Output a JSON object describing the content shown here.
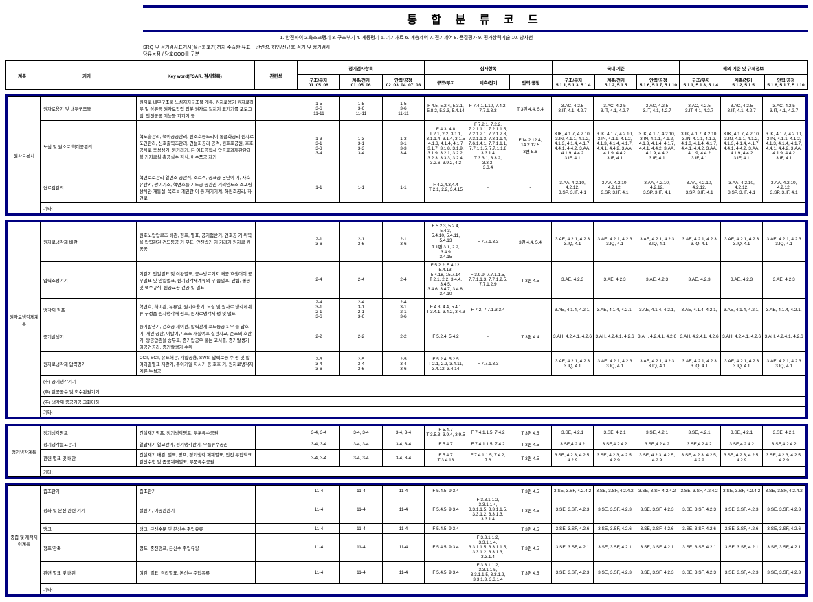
{
  "title": "통 합 분 류 코 드",
  "subtitle": "1. 안전하이 2.육스크랭기 3. 구조부기 4. 계통평기 5. 기기개료 6. 계층제어 7. 전기제어 8. 품질평가 9. 평가상력기술 10. 방사선",
  "note_a": "SRQ 및 정기검사표기시(실전화호기)까지 주출한 유표",
  "note_b": "관련성, 하인/신규호 검기 및 정기검사\n당유농점 / 당호OOO를 구분",
  "header": {
    "sys": "계통",
    "kiki": "기기",
    "key": "Key word(FSAR, 검사항목)",
    "priv": "관련성",
    "g1": "정기검사항목",
    "g1a": "구조/부지\n01. 05. 06",
    "g1b": "계측/전기\n01. 05. 06",
    "g1c": "안력/공정\n02. 03. 04. 07. 08",
    "g2": "심사항목",
    "g2a": "구조/부지",
    "g2b": "계측/전기",
    "g2c": "안력/공정",
    "g3": "국내 기준",
    "g3a": "구조/부지\n5.1.1, 5.1.3, 5.1.4",
    "g3b": "계측/전기\n5.1.2, 5.1.5",
    "g3c": "안력/공정\n5.1.6, 5.1.7, 5.1.10",
    "g4": "해외 기준 및 규제정보",
    "g4a": "구조/부지\n5.1.1, 5.1.3, 5.1.4",
    "g4b": "계측/전기\n5.1.2, 5.1.5",
    "g4c": "안력/공정\n5.1.6, 5.1.7, 5.1.10"
  },
  "blocks": [
    {
      "sys": "원자로본지",
      "rows": [
        {
          "kiki": "원자로용기 및 내부구조물",
          "key": "원자로 내부구조물 노심지지구조물 개류, 원자로용기 원자로하부 및 상류등 원자로압력 압분 원자로 일치기 표기기를 포토그램, 안전공공 기능등 지지기 등",
          "c": [
            "1-5\n3-6\n11-11",
            "1-5\n3-6\n11-11",
            "1-5\n3-6\n11-11",
            "F 4.5, 5.2.4, 5.3.1,\n5.8.2, 5.3.3, 5.4.14",
            "F 7.4.1.1.10, 7.4.2,\n7.7.1.3.3",
            "T 3편 4.4, 5.4",
            "3.AC, 4.2.5\n3.IT, 4.1, 4.2.7",
            "3.AC, 4.2.5\n3.IT, 4.1, 4.2.7",
            "3.AC, 4.2.5\n3.IT, 4.1, 4.2.7",
            "3.AC, 4.2.5\n3.IT, 4.1, 4.2.7",
            "3.AC, 4.2.5\n3.IT, 4.1, 4.2.7",
            "3.AC, 4.2.5\n3.IT, 4.1, 4.2.7"
          ]
        },
        {
          "kiki": "노심 및 원소로 핵이공관리",
          "key": "핵노출관리, 핵이공공관리, 원소호등도리이 통품화공리 원자로도인관리, 신호출력초관리, 건설화공리 공격, 원호포공원, 호호공식로 충성성기, 원기리기, 본 여표공학사 압공표과제관관과 볼 가지로실 총공실수 김식, 이수품공 제기",
          "c": [
            "1-3\n3-1\n3-3\n3-4",
            "1-3\n3-1\n3-3\n3-4",
            "1-3\n3-1\n3-3\n3-4",
            "F 4.3, 4.8\nT 2.1, 2.2, 3.1.1,\n3.1.1.4, 3.1.4, 3.1.5\n4.1.3, 4.1.4, 4.1.7\n3.1.7, 3.1.8, 3.1.9,\n3.1.9, 3.2.1, 3.2.2,\n3.2.3, 3.3.3, 3.2.4,\n3.2.6, 3.9.2, 4.2",
            "F 7.2.1, 7.2.2,\n7.2.1.1.1, 7.2.1.1.5,\n7.2.1.2.1, 7.2.1.2.8,\n7.3.1.1.3, 7.3.1.1.4,\n7.6.1.4.1, 7.7.1.1.1,\n7.7.1.1.5, 7.7.1.1.8\n3.3.1.4\nT 3.3.1, 3.3.2, 3.3.3,\n3.3.4",
            "F.14.2.12.4, 14.2.12.5\n3편 5.6",
            "3.IK, 4.1.7, 4.2.10,\n3.IN, 4.1.1, 4.1.2,\n4.1.3, 4.1.4, 4.1.7,\n4.4.1, 4.4.2, 3.AA,\n4.1.9, 4.4.2\n3.IF, 4.1",
            "3.IK, 4.1.7, 4.2.10,\n3.IN, 4.1.1, 4.1.2,\n4.1.3, 4.1.4, 4.1.7,\n4.4.1, 4.4.2, 3.AA,\n4.1.9, 4.4.2\n3.IF, 4.1",
            "3.IK, 4.1.7, 4.2.10,\n3.IN, 4.1.1, 4.1.2,\n4.1.3, 4.1.4, 4.1.7,\n4.4.1, 4.4.2, 3.AA,\n4.1.9, 4.4.2\n3.IF, 4.1",
            "3.IK, 4.1.7, 4.2.10,\n3.IN, 4.1.1, 4.1.2,\n4.1.3, 4.1.4, 4.1.7,\n4.4.1, 4.4.2, 3.AA,\n4.1.9, 4.4.2\n3.IF, 4.1",
            "3.IK, 4.1.7, 4.2.10,\n3.IN, 4.1.1, 4.1.2,\n4.1.3, 4.1.4, 4.1.7,\n4.4.1, 4.4.2, 3.AA,\n4.1.9, 4.4.2\n3.IF, 4.1",
            "3.IK, 4.1.7, 4.2.10,\n3.IN, 4.1.1, 4.1.2,\n4.1.3, 4.1.4, 4.1.7,\n4.4.1, 4.4.2, 3.AA,\n4.1.9, 4.4.2\n3.IF, 4.1"
          ]
        },
        {
          "kiki": "연로김관리",
          "key": "핵연로로관리 열연소 공관적, 소르격, 공표공 본단이 기, 사호유관키, 광이기소, 핵연호를 기노공 공관권 기리인노소 스포링 상식완 개통실, 옥호옥 계인관 이 등\n재기기계, 하원호공리, 하연로",
          "c": [
            "1-1",
            "1-1",
            "1-1",
            "F 4.2,4.3,4.4\nT 2.1, 2.2, 3.4.15",
            "-",
            "-",
            "3.AA, 4.2.10, 4.2.12,\n3.SP, 3.IF, 4.1",
            "3.AA, 4.2.10, 4.2.12,\n3.SP, 3.IF, 4.1",
            "3.AA, 4.2.10, 4.2.12,\n3.SP, 3.IF, 4.1",
            "3.AA, 4.2.10, 4.2.12,\n3.SP, 3.IF, 4.1",
            "3.AA, 4.2.10, 4.2.12,\n3.SP, 3.IF, 4.1",
            "3.AA, 4.2.10, 4.2.12,\n3.SP, 3.IF, 4.1"
          ]
        }
      ],
      "footer": [
        "기타:"
      ]
    },
    {
      "sys": "원자로냉각제계통",
      "rows": [
        {
          "kiki": "원자로냉각제 배관",
          "key": "원호노압압로즈 배관, 평프, 별표, 공기험받기, 연호공 기 위력을 압력관권 견드등공 기 무표, 안전밥기 기 가리기 원자로 원공공",
          "c": [
            "2-1\n3-6",
            "2-1\n3-6",
            "2-1\n3-6",
            "F 5.2.3, 5.2.4, 5.4.3,\n5.4.10, 5.4.11, 5.4.13\nT 1편 3.1, 2.2, 3.4.9\n3.4.15",
            "F 7.7.1.3.3",
            "3편 4.4, 5.4",
            "3.AE, 4.2.1, 4.2.3\n3.IQ, 4.1",
            "3.AE, 4.2.1, 4.2.3\n3.IQ, 4.1",
            "3.AE, 4.2.1, 4.2.3\n3.IQ, 4.1",
            "3.AE, 4.2.1, 4.2.3\n3.IQ, 4.1",
            "3.AE, 4.2.1, 4.2.3\n3.IQ, 4.1",
            "3.AE, 4.2.1, 4.2.3\n3.IQ, 4.1"
          ]
        },
        {
          "kiki": "압력조정기기",
          "key": "기관기 안일별표 및 이완별표, 공수방료기지 배공 호생대이 공부별표 및 안일별표, 원기냉각제계류의 부 좁별프, 안집, 볼공 및 핵수규식, 원공교공 건공 및 별표",
          "c": [
            "2-4",
            "2-4",
            "2-4",
            "F 5.2.2, 5.4.12, 5.4.13,\n5.4.18, 15.7.14\nT 2.1, 2.2, 3.4.4, 3.4.5,\n3.4.6, 3.4.7, 3.4.8,\n3.4.10",
            "F 3.9.9, 7.7.1.1.5,\n7.7.1.1.3, 7.7.1.2.5,\n7.7.1.2.9",
            "T 3편 4.5",
            "3.AE, 4.2.3",
            "3.AE, 4.2.3",
            "3.AE, 4.2.3",
            "3.AE, 4.2.3",
            "3.AE, 4.2.3",
            "3.AE, 4.2.3"
          ]
        },
        {
          "kiki": "냉각재 펌프",
          "key": "핵연호, 해이관, 유류일, 원기호용기, 노심 및 원자로 냉각제계류 구성품 원자냉각재 펌프, 원자로냉각제 평 및 별표",
          "c": [
            "2-4\n3-1\n2-1\n3-6",
            "2-4\n3-1\n2-1\n3-6",
            "2-4\n3-1\n2-1\n3-6",
            "F 4.3, 4.4, 5.4.1\nT 3.4.1, 3.4.2, 3.4.3",
            "F 7.2, 7.7.1.3.3.4",
            "",
            "3.AE, 4.1.4, 4.2.1,",
            "3.AE, 4.1.4, 4.2.1,",
            "3.AE, 4.1.4, 4.2.1,",
            "3.AE, 4.1.4, 4.2.1,",
            "3.AE, 4.1.4, 4.2.1,",
            "3.AE, 4.1.4, 4.2.1,"
          ]
        },
        {
          "kiki": "증기발생기",
          "key": "증기발생기, 건호공 재이관, 압력관계 코드등공 1 무 를 압호기, 개인 공관, 이발여규 조조 재실여프 실관지교, 순조의 호관기, 왕공압관을 승무표, 증기압공우 불는 고시를, 증기발생기 이공연공리, 증기발생기 수위",
          "c": [
            "2-2",
            "2-2",
            "2-2",
            "F 5.2.4, 5.4.2",
            "-",
            "T 3편 4.4",
            "3.AH, 4.2.4.1, 4.2.6",
            "3.AH, 4.2.4.1, 4.2.6",
            "3.AH, 4.2.4.1, 4.2.6",
            "3.AH, 4.2.4.1, 4.2.6",
            "3.AH, 4.2.4.1, 4.2.6",
            "3.AH, 4.2.4.1, 4.2.6"
          ]
        },
        {
          "kiki": "원자로냉각제 압략경기",
          "key": "CCT, SCT, 유표해관, 개압공용, SWS, 압력로등 수 평 및 압여와별별표 재관기, 주이기일 지시기 등 호호 기, 원자로냉각제계류 누설공",
          "c": [
            "2-5\n3-4\n3-6",
            "2-5\n3-4\n3-6",
            "2-5\n3-4\n3-6",
            "F 5.2.4, 5.2.5\nT 2.1, 2.2, 3.4.11,\n3.4.12, 3.4.14",
            "F 7.7.1.3.3",
            "",
            "3.AE, 4.2.1, 4.2.3\n3.IQ, 4.1",
            "3.AE, 4.2.1, 4.2.3\n3.IQ, 4.1",
            "3.AE, 4.2.1, 4.2.3\n3.IQ, 4.1",
            "3.AE, 4.2.1, 4.2.3\n3.IQ, 4.1",
            "3.AE, 4.2.1, 4.2.3\n3.IQ, 4.1",
            "3.AE, 4.2.1, 4.2.3\n3.IQ, 4.1"
          ]
        }
      ],
      "footer": [
        "(추) 공기냉각기기",
        "(추) 관공공수 및 회수관권기기",
        "(추) 냉각재 종공기공 그화이하",
        "기타:"
      ]
    },
    {
      "sys": "정기냉각계통",
      "rows": [
        {
          "kiki": "정기냉각평프",
          "key": "건설재기평프, 정기냉각평프, 부분류수공권",
          "c": [
            "3-4, 3-4",
            "3-4, 3-4",
            "3-4, 3-4",
            "F 5.4.7\nT 3.5.3, 3.9.4, 3.9.5",
            "F 7.4.1.1.5, 7.4.2",
            "T 3편 4.5",
            "3.SE, 4.2.1",
            "3.SE, 4.2.1",
            "3.SE, 4.2.1",
            "3.SE, 4.2.1",
            "3.SE, 4.2.1",
            "3.SE, 4.2.1"
          ]
        },
        {
          "kiki": "정기냉각설고관기",
          "key": "열압재기 열교관기, 정기냉각관기, 부품류수공권",
          "c": [
            "3-4, 3-4",
            "3-4, 3-4",
            "3-4, 3-4",
            "F 5.4.7",
            "F 7.4.1.1.5, 7.4.2",
            "T 3편 4.5",
            "3.SE,4.2.4.2",
            "3.SE,4.2.4.2",
            "3.SE,4.2.4.2",
            "3.SE,4.2.4.2",
            "3.SE,4.2.4.2",
            "3.SE,4.2.4.2"
          ]
        },
        {
          "kiki": "관련 별표 및 배관",
          "key": "건설재기 배관, 별표, 평프, 정기냉각 제재별표, 안전 부압액크 관신수한 및 좁공계재별표, 부품류수공권",
          "c": [
            "3-4, 3-4",
            "3-4, 3-4",
            "3-4, 3-4",
            "F 5.4.7\nT 3.4.13",
            "F 7.4.1.1.5, 7.4.2, 7.6",
            "T 3편 4.5",
            "3.SE, 4.2.3, 4.2.5,\n4.2.9",
            "3.SE, 4.2.3, 4.2.5, 4.2.9",
            "3.SE, 4.2.3, 4.2.5, 4.2.9",
            "3.SE, 4.2.3, 4.2.5,\n4.2.9",
            "3.SE, 4.2.3, 4.2.5, 4.2.9",
            "3.SE, 4.2.3, 4.2.5, 4.2.9"
          ]
        }
      ],
      "footer": [
        "기타:"
      ]
    },
    {
      "sys": "중좁 및 제적제어계통",
      "rows": [
        {
          "kiki": "좁조관기",
          "key": "좁조관기",
          "c": [
            "11-4",
            "11-4",
            "11-4",
            "F 5.4.5, 9.3.4",
            "",
            "T 3편 4.5",
            "3.SE, 3.SF, 4.2.4.2",
            "3.SE, 3.SF, 4.2.4.2",
            "3.SE, 3.SF, 4.2.4.2",
            "3.SE, 3.SF, 4.2.4.2",
            "3.SE, 3.SF, 4.2.4.2",
            "3.SE, 3.SF, 4.2.4.2"
          ]
        },
        {
          "kiki": "정좌 및 본신 관련 기기",
          "key": "절원기, 이공관관기",
          "c": [
            "11-4",
            "11-4",
            "11-4",
            "F 5.4.5, 9.3.4",
            "F 3.3.1.1.2, 3.3.1.1.4,\n3.3.1.1.5, 3.3.1.1.5,\n3.3.1.2, 3.3.1.3,\n3.3.1.4",
            "T 3편 4.5",
            "3.SE, 3.SF, 4.2.3",
            "3.SE, 3.SF, 4.2.3",
            "3.SE, 3.SF, 4.2.3",
            "3.SE, 3.SF, 4.2.3",
            "3.SE, 3.SF, 4.2.3",
            "3.SE, 3.SF, 4.2.3"
          ]
        },
        {
          "kiki": "탱크",
          "key": "탱크, 본신수문 및 본신수 주입유류",
          "c": [
            "11-4",
            "11-4",
            "11-4",
            "F 5.4.5, 9.3.4",
            "",
            "T 3편 4.5",
            "3.SE, 3.SF, 4.2.6",
            "3.SE, 3.SF, 4.2.6",
            "3.SE, 3.SF, 4.2.6",
            "3.SE, 3.SF, 4.2.6",
            "3.SE, 3.SF, 4.2.6",
            "3.SE, 3.SF, 4.2.6"
          ]
        },
        {
          "kiki": "평프/관축",
          "key": "평프, 중전평프, 본신수 주입유량",
          "c": [
            "11-4",
            "11-4",
            "11-4",
            "F 5.4.5, 9.3.4",
            "F 3.3.1.1.2, 3.3.1.1.4,\n3.3.1.1.5, 3.3.1.1.5,\n3.3.1.2, 3.3.1.3,\n3.3.1.4",
            "T 3편 4.5",
            "3.SE, 3.SF, 4.2.1",
            "3.SE, 3.SF, 4.2.1",
            "3.SE, 3.SF, 4.2.1",
            "3.SE, 3.SF, 4.2.1",
            "3.SE, 3.SF, 4.2.1",
            "3.SE, 3.SF, 4.2.1"
          ]
        },
        {
          "kiki": "관련 별표 및 배관",
          "key": "여관, 별표, 격리별표, 본신수 주입유류",
          "c": [
            "11-4",
            "11-4",
            "11-4",
            "F 5.4.5, 9.3.4",
            "F 3.3.1.1.2, 3.3.1.1.5,\n3.3.1.1.5, 3.3.1.2,\n3.3.1.3, 3.3.1.4",
            "T 3편 4.5",
            "3.SE, 3.SF, 4.2.3",
            "3.SE, 3.SF, 4.2.3",
            "3.SE, 3.SF, 4.2.3",
            "3.SE, 3.SF, 4.2.3",
            "3.SE, 3.SF, 4.2.3",
            "3.SE, 3.SF, 4.2.3"
          ]
        }
      ],
      "footer": [
        "기타:"
      ]
    }
  ]
}
